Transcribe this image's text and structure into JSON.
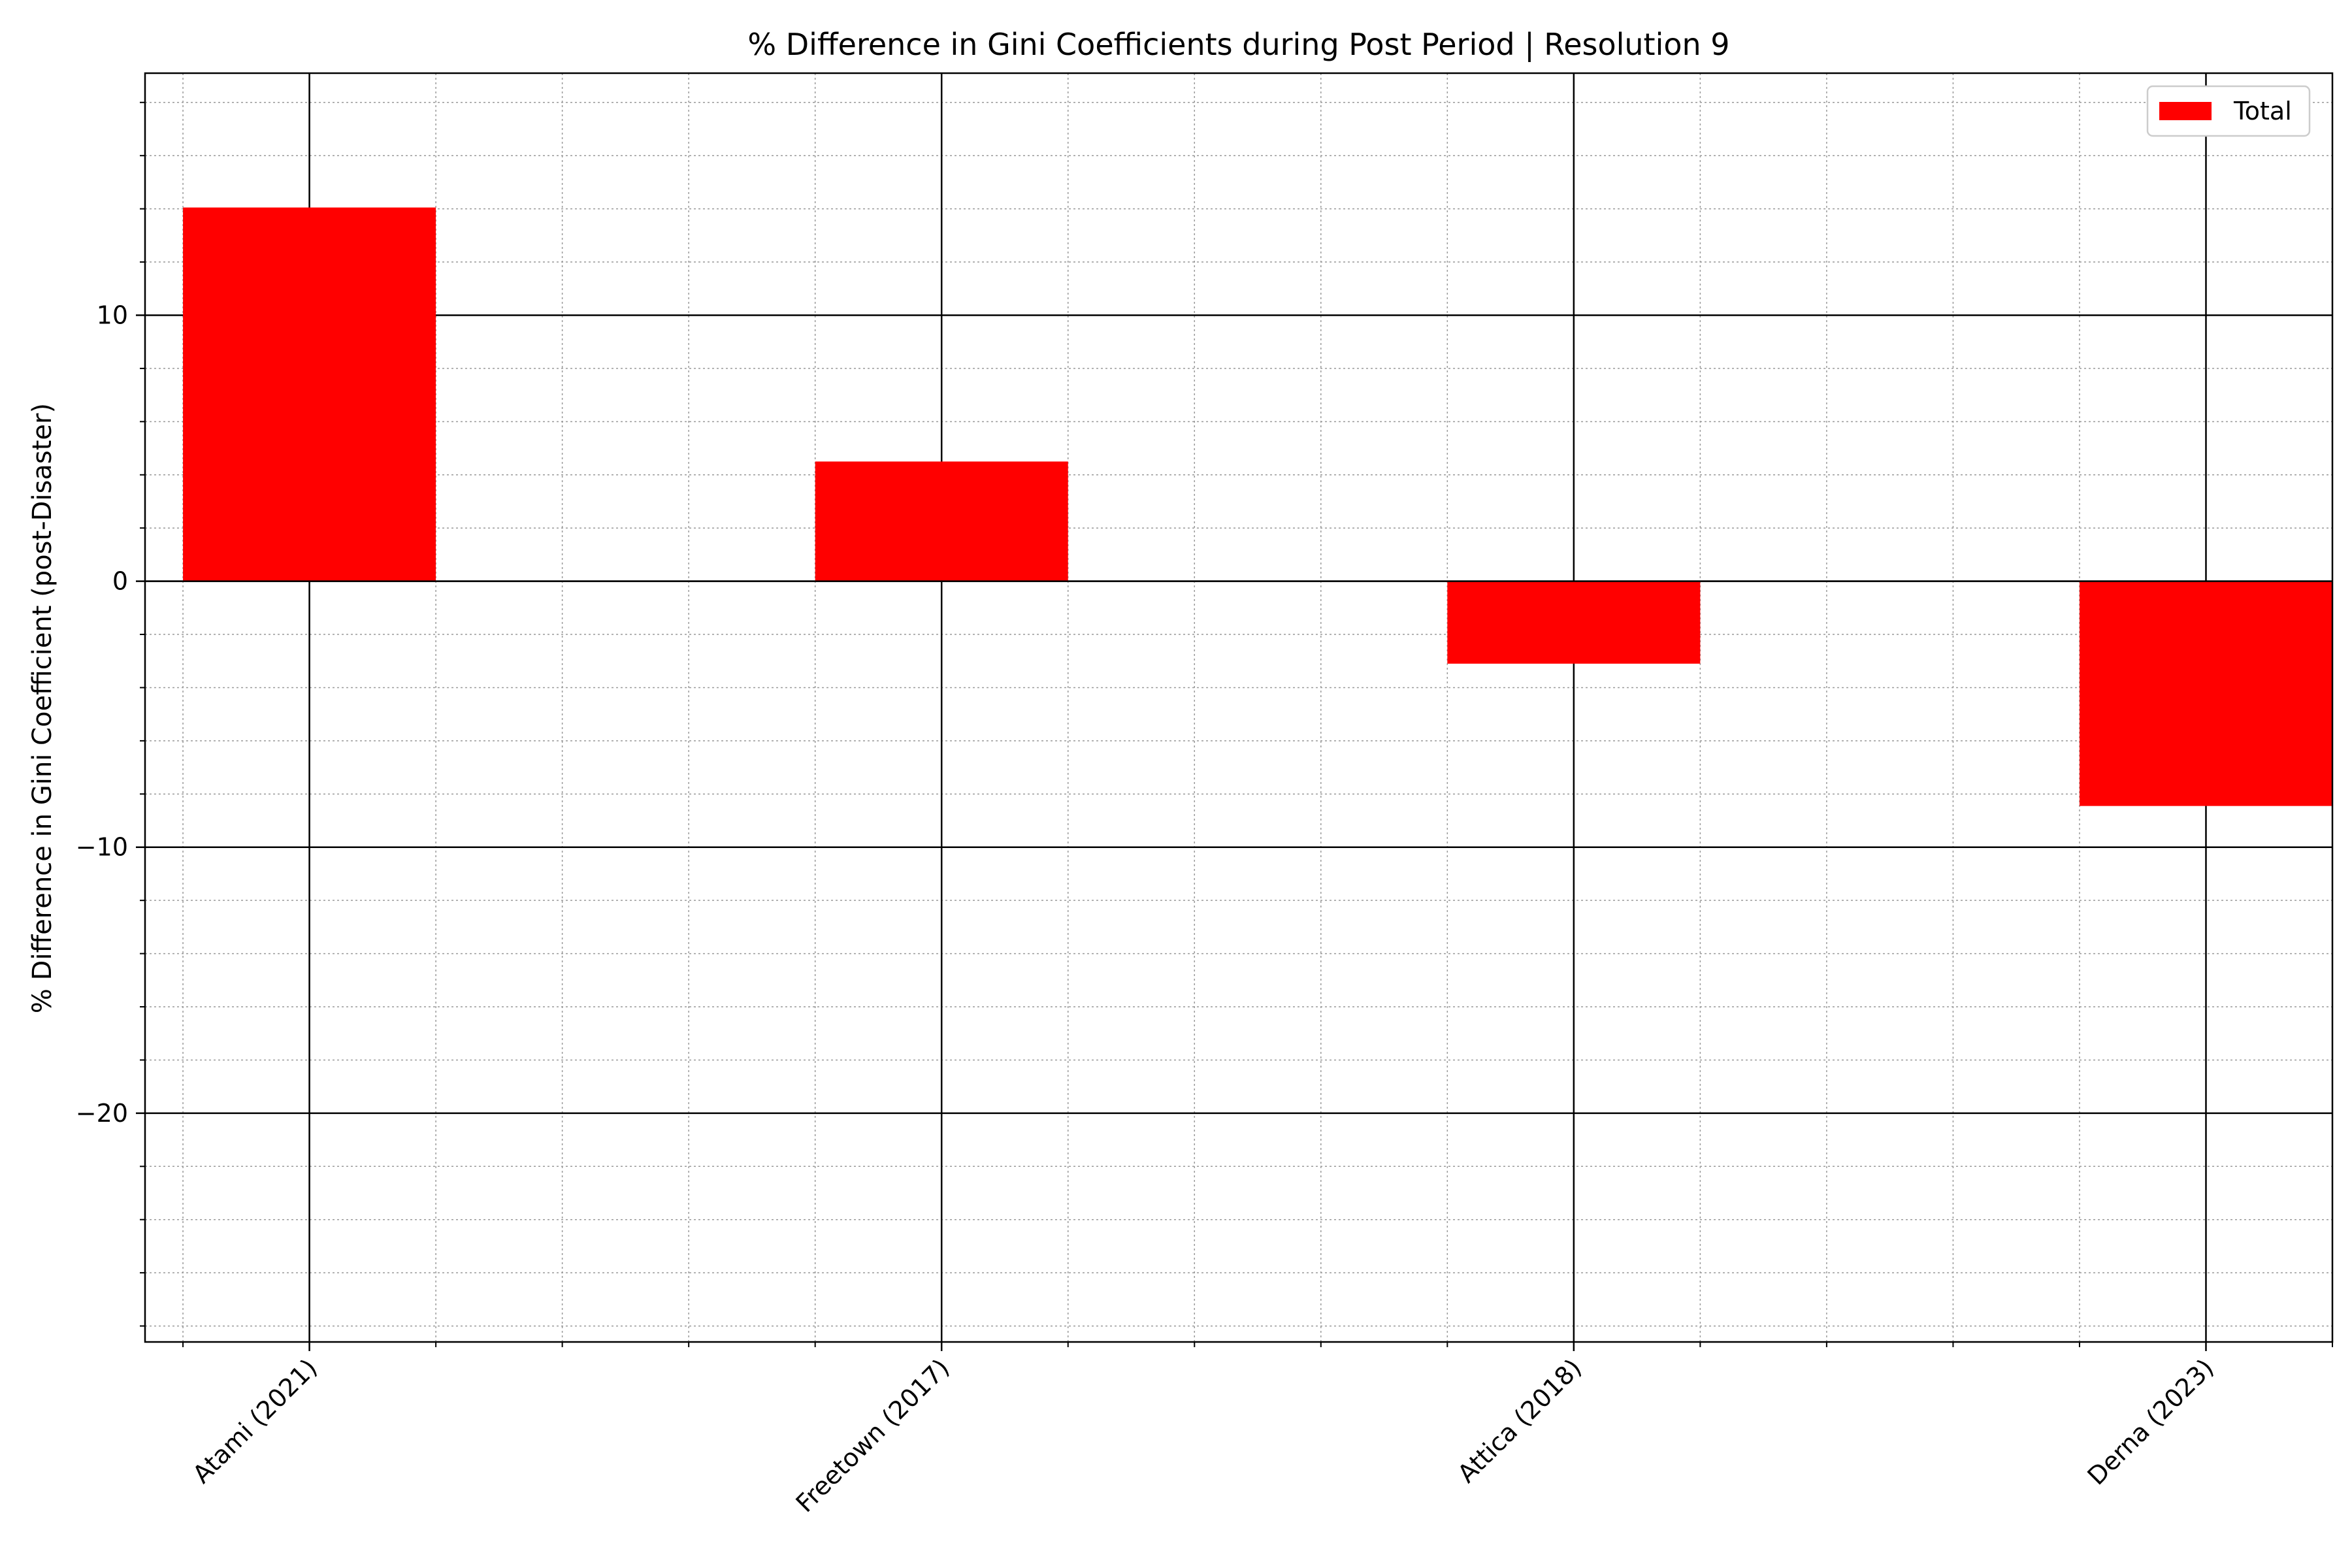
{
  "chart_data": {
    "type": "bar",
    "title": "% Difference in Gini Coefficients during Post Period | Resolution 9",
    "xlabel": "",
    "ylabel": "% Difference in Gini Coefficient (post-Disaster)",
    "categories": [
      "Atami (2021)",
      "Freetown (2017)",
      "Attica (2018)",
      "Derna (2023)"
    ],
    "series": [
      {
        "name": "Total",
        "color": "#ff0000",
        "values": [
          14.05,
          4.5,
          -3.1,
          -8.45
        ]
      }
    ],
    "ylim": [
      -28.6,
      19.1
    ],
    "yticks": [
      -20,
      -10,
      0,
      10
    ],
    "ytick_labels": [
      "−20",
      "−10",
      "0",
      "10"
    ],
    "grid": {
      "major": true,
      "minor": true
    },
    "legend": {
      "placement": "top-right"
    }
  }
}
